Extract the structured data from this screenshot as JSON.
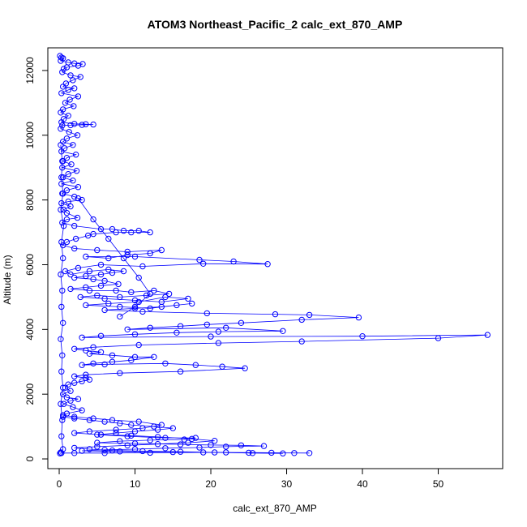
{
  "chart_data": {
    "type": "scatter",
    "title": "ATOM3 Northeast_Pacific_2 calc_ext_870_AMP",
    "xlabel": "calc_ext_870_AMP",
    "ylabel": "Altitude (m)",
    "xlim": [
      -1.5,
      58.5
    ],
    "ylim": [
      -300,
      12700
    ],
    "x_ticks": [
      0,
      10,
      20,
      30,
      40,
      50
    ],
    "y_ticks": [
      0,
      2000,
      4000,
      6000,
      8000,
      10000,
      12000
    ],
    "grid": false,
    "legend": "none",
    "marker": "open-circle",
    "connect_points": true,
    "color": "#0000ff",
    "series": [
      {
        "points": [
          [
            0.1,
            12450
          ],
          [
            0.3,
            12400
          ],
          [
            0.5,
            12380
          ],
          [
            0.2,
            12300
          ],
          [
            1.2,
            12250
          ],
          [
            2.0,
            12220
          ],
          [
            3.1,
            12200
          ],
          [
            2.5,
            12150
          ],
          [
            1.0,
            12100
          ],
          [
            0.6,
            12050
          ],
          [
            0.4,
            11950
          ],
          [
            1.5,
            11850
          ],
          [
            2.8,
            11800
          ],
          [
            1.8,
            11700
          ],
          [
            0.9,
            11600
          ],
          [
            0.5,
            11500
          ],
          [
            2.0,
            11450
          ],
          [
            1.2,
            11400
          ],
          [
            0.3,
            11300
          ],
          [
            2.5,
            11200
          ],
          [
            1.4,
            11100
          ],
          [
            0.8,
            11000
          ],
          [
            1.9,
            10900
          ],
          [
            0.5,
            10800
          ],
          [
            0.2,
            10700
          ],
          [
            1.2,
            10600
          ],
          [
            0.6,
            10500
          ],
          [
            0.3,
            10400
          ],
          [
            2.0,
            10350
          ],
          [
            3.5,
            10340
          ],
          [
            4.5,
            10330
          ],
          [
            3.0,
            10320
          ],
          [
            1.5,
            10310
          ],
          [
            0.4,
            10300
          ],
          [
            0.2,
            10200
          ],
          [
            1.3,
            10100
          ],
          [
            2.4,
            10000
          ],
          [
            1.0,
            9900
          ],
          [
            0.5,
            9800
          ],
          [
            1.8,
            9700
          ],
          [
            0.7,
            9600
          ],
          [
            0.3,
            9500
          ],
          [
            2.2,
            9400
          ],
          [
            1.0,
            9300
          ],
          [
            0.5,
            9200
          ],
          [
            1.6,
            9100
          ],
          [
            0.4,
            9000
          ],
          [
            2.3,
            8900
          ],
          [
            1.2,
            8800
          ],
          [
            0.5,
            8700
          ],
          [
            1.8,
            8600
          ],
          [
            0.3,
            8500
          ],
          [
            2.5,
            8400
          ],
          [
            1.0,
            8300
          ],
          [
            0.4,
            8200
          ],
          [
            2.0,
            8100
          ],
          [
            3.0,
            8000
          ],
          [
            1.2,
            7950
          ],
          [
            0.3,
            7900
          ],
          [
            1.5,
            7800
          ],
          [
            0.6,
            7700
          ],
          [
            1.0,
            7600
          ],
          [
            2.4,
            7450
          ],
          [
            1.0,
            7400
          ],
          [
            0.4,
            7300
          ],
          [
            2.0,
            7200
          ],
          [
            5.5,
            7100
          ],
          [
            7.0,
            7100
          ],
          [
            8.5,
            7050
          ],
          [
            10.5,
            7050
          ],
          [
            12.0,
            7000
          ],
          [
            9.5,
            7000
          ],
          [
            7.5,
            7000
          ],
          [
            4.5,
            6950
          ],
          [
            3.8,
            6900
          ],
          [
            2.2,
            6800
          ],
          [
            1.0,
            6700
          ],
          [
            0.5,
            6600
          ],
          [
            2.0,
            6500
          ],
          [
            5.0,
            6450
          ],
          [
            9.0,
            6400
          ],
          [
            13.5,
            6450
          ],
          [
            12.0,
            6350
          ],
          [
            9.0,
            6300
          ],
          [
            6.5,
            6200
          ],
          [
            3.5,
            6250
          ],
          [
            10.0,
            6250
          ],
          [
            18.5,
            6150
          ],
          [
            23.0,
            6100
          ],
          [
            27.5,
            6020
          ],
          [
            19.0,
            6030
          ],
          [
            11.0,
            5950
          ],
          [
            5.5,
            6000
          ],
          [
            2.5,
            5900
          ],
          [
            0.8,
            5800
          ],
          [
            1.5,
            5700
          ],
          [
            4.0,
            5800
          ],
          [
            6.5,
            5850
          ],
          [
            8.5,
            5800
          ],
          [
            7.0,
            5750
          ],
          [
            5.5,
            5700
          ],
          [
            3.5,
            5650
          ],
          [
            2.0,
            5600
          ],
          [
            4.5,
            5550
          ],
          [
            6.0,
            5500
          ],
          [
            7.8,
            5400
          ],
          [
            5.5,
            5350
          ],
          [
            3.5,
            5300
          ],
          [
            1.5,
            5250
          ],
          [
            4.0,
            5200
          ],
          [
            7.5,
            5200
          ],
          [
            9.5,
            5150
          ],
          [
            12.5,
            5200
          ],
          [
            14.5,
            5100
          ],
          [
            11.5,
            5050
          ],
          [
            8.0,
            5000
          ],
          [
            5.0,
            5050
          ],
          [
            2.8,
            5000
          ],
          [
            6.0,
            4950
          ],
          [
            10.0,
            4900
          ],
          [
            13.5,
            4850
          ],
          [
            17.0,
            4950
          ],
          [
            14.0,
            5000
          ],
          [
            10.5,
            4850
          ],
          [
            6.5,
            4800
          ],
          [
            3.5,
            4750
          ],
          [
            8.0,
            4700
          ],
          [
            12.0,
            4650
          ],
          [
            15.5,
            4750
          ],
          [
            17.5,
            4800
          ],
          [
            13.5,
            4700
          ],
          [
            10.0,
            4650
          ],
          [
            6.0,
            4600
          ],
          [
            11.0,
            4550
          ],
          [
            19.5,
            4500
          ],
          [
            28.5,
            4470
          ],
          [
            33.0,
            4450
          ],
          [
            39.5,
            4370
          ],
          [
            32.0,
            4300
          ],
          [
            24.0,
            4200
          ],
          [
            19.5,
            4150
          ],
          [
            16.0,
            4100
          ],
          [
            12.0,
            4050
          ],
          [
            9.0,
            4000
          ],
          [
            22.0,
            4050
          ],
          [
            29.5,
            3950
          ],
          [
            21.0,
            3930
          ],
          [
            15.5,
            3900
          ],
          [
            10.0,
            3850
          ],
          [
            5.5,
            3800
          ],
          [
            3.0,
            3750
          ],
          [
            20.0,
            3780
          ],
          [
            40.0,
            3790
          ],
          [
            56.5,
            3830
          ],
          [
            50.0,
            3730
          ],
          [
            32.0,
            3630
          ],
          [
            21.0,
            3580
          ],
          [
            10.5,
            3520
          ],
          [
            4.5,
            3450
          ],
          [
            2.0,
            3400
          ],
          [
            3.5,
            3350
          ],
          [
            5.5,
            3300
          ],
          [
            4.0,
            3250
          ],
          [
            7.0,
            3200
          ],
          [
            10.0,
            3150
          ],
          [
            12.5,
            3150
          ],
          [
            9.5,
            3050
          ],
          [
            7.0,
            3000
          ],
          [
            4.5,
            2950
          ],
          [
            3.0,
            2900
          ],
          [
            6.0,
            2920
          ],
          [
            14.0,
            2950
          ],
          [
            18.0,
            2900
          ],
          [
            21.5,
            2850
          ],
          [
            24.5,
            2800
          ],
          [
            16.0,
            2700
          ],
          [
            8.0,
            2650
          ],
          [
            3.5,
            2600
          ],
          [
            2.0,
            2550
          ],
          [
            3.5,
            2500
          ],
          [
            4.0,
            2450
          ],
          [
            3.0,
            2400
          ],
          [
            2.0,
            2350
          ],
          [
            1.2,
            2300
          ],
          [
            0.8,
            2200
          ],
          [
            1.5,
            2100
          ],
          [
            0.5,
            2000
          ],
          [
            1.0,
            1900
          ],
          [
            2.5,
            1850
          ],
          [
            1.5,
            1800
          ],
          [
            0.6,
            1700
          ],
          [
            1.8,
            1600
          ],
          [
            3.0,
            1500
          ],
          [
            1.0,
            1400
          ],
          [
            0.5,
            1300
          ],
          [
            2.0,
            1250
          ],
          [
            4.0,
            1200
          ],
          [
            6.0,
            1150
          ],
          [
            8.0,
            1100
          ],
          [
            9.5,
            1050
          ],
          [
            12.5,
            1000
          ],
          [
            15.0,
            950
          ],
          [
            13.0,
            900
          ],
          [
            10.0,
            850
          ],
          [
            7.5,
            800
          ],
          [
            5.0,
            750
          ],
          [
            9.0,
            700
          ],
          [
            14.0,
            650
          ],
          [
            18.0,
            650
          ],
          [
            16.5,
            600
          ],
          [
            12.0,
            580
          ],
          [
            8.0,
            550
          ],
          [
            5.0,
            500
          ],
          [
            10.0,
            480
          ],
          [
            16.0,
            450
          ],
          [
            20.0,
            430
          ],
          [
            24.0,
            420
          ],
          [
            27.0,
            400
          ],
          [
            22.0,
            380
          ],
          [
            18.5,
            350
          ],
          [
            14.0,
            330
          ],
          [
            10.0,
            300
          ],
          [
            6.0,
            280
          ],
          [
            3.0,
            250
          ],
          [
            8.0,
            230
          ],
          [
            15.0,
            210
          ],
          [
            22.0,
            200
          ],
          [
            28.0,
            190
          ],
          [
            31.0,
            180
          ],
          [
            33.0,
            180
          ],
          [
            25.0,
            190
          ],
          [
            19.0,
            200
          ],
          [
            12.0,
            190
          ],
          [
            6.0,
            180
          ],
          [
            2.0,
            180
          ],
          [
            0.3,
            180
          ],
          [
            0.1,
            170
          ]
        ]
      },
      {
        "points": [
          [
            0.2,
            9700
          ],
          [
            0.4,
            9200
          ],
          [
            0.3,
            8700
          ],
          [
            0.5,
            8200
          ],
          [
            0.2,
            7700
          ],
          [
            0.6,
            7200
          ],
          [
            0.3,
            6700
          ],
          [
            0.5,
            6200
          ],
          [
            0.2,
            5700
          ],
          [
            0.4,
            5200
          ],
          [
            0.3,
            4700
          ],
          [
            0.5,
            4200
          ],
          [
            0.2,
            3700
          ],
          [
            0.4,
            3200
          ],
          [
            0.3,
            2700
          ],
          [
            0.5,
            2200
          ],
          [
            0.2,
            1700
          ],
          [
            0.4,
            1200
          ],
          [
            0.3,
            700
          ],
          [
            0.5,
            300
          ],
          [
            0.2,
            200
          ]
        ]
      },
      {
        "points": [
          [
            2.5,
            8050
          ],
          [
            4.5,
            7400
          ],
          [
            6.5,
            6800
          ],
          [
            8.5,
            6200
          ],
          [
            10.5,
            5600
          ],
          [
            12.0,
            5100
          ],
          [
            10.0,
            4700
          ],
          [
            8.0,
            4400
          ]
        ]
      },
      {
        "points": [
          [
            0.5,
            1350
          ],
          [
            2.0,
            1300
          ],
          [
            4.5,
            1250
          ],
          [
            7.0,
            1200
          ],
          [
            10.5,
            1150
          ],
          [
            13.5,
            1050
          ],
          [
            11.0,
            950
          ],
          [
            7.5,
            900
          ],
          [
            4.0,
            850
          ],
          [
            2.0,
            800
          ],
          [
            5.5,
            750
          ],
          [
            9.5,
            720
          ],
          [
            13.0,
            680
          ],
          [
            17.5,
            620
          ],
          [
            20.5,
            560
          ],
          [
            17.0,
            500
          ],
          [
            13.0,
            460
          ],
          [
            9.0,
            420
          ],
          [
            5.0,
            380
          ],
          [
            2.0,
            340
          ],
          [
            4.0,
            300
          ],
          [
            7.0,
            260
          ],
          [
            11.0,
            240
          ],
          [
            16.0,
            220
          ],
          [
            20.5,
            200
          ],
          [
            25.5,
            180
          ],
          [
            29.5,
            170
          ]
        ]
      }
    ]
  }
}
